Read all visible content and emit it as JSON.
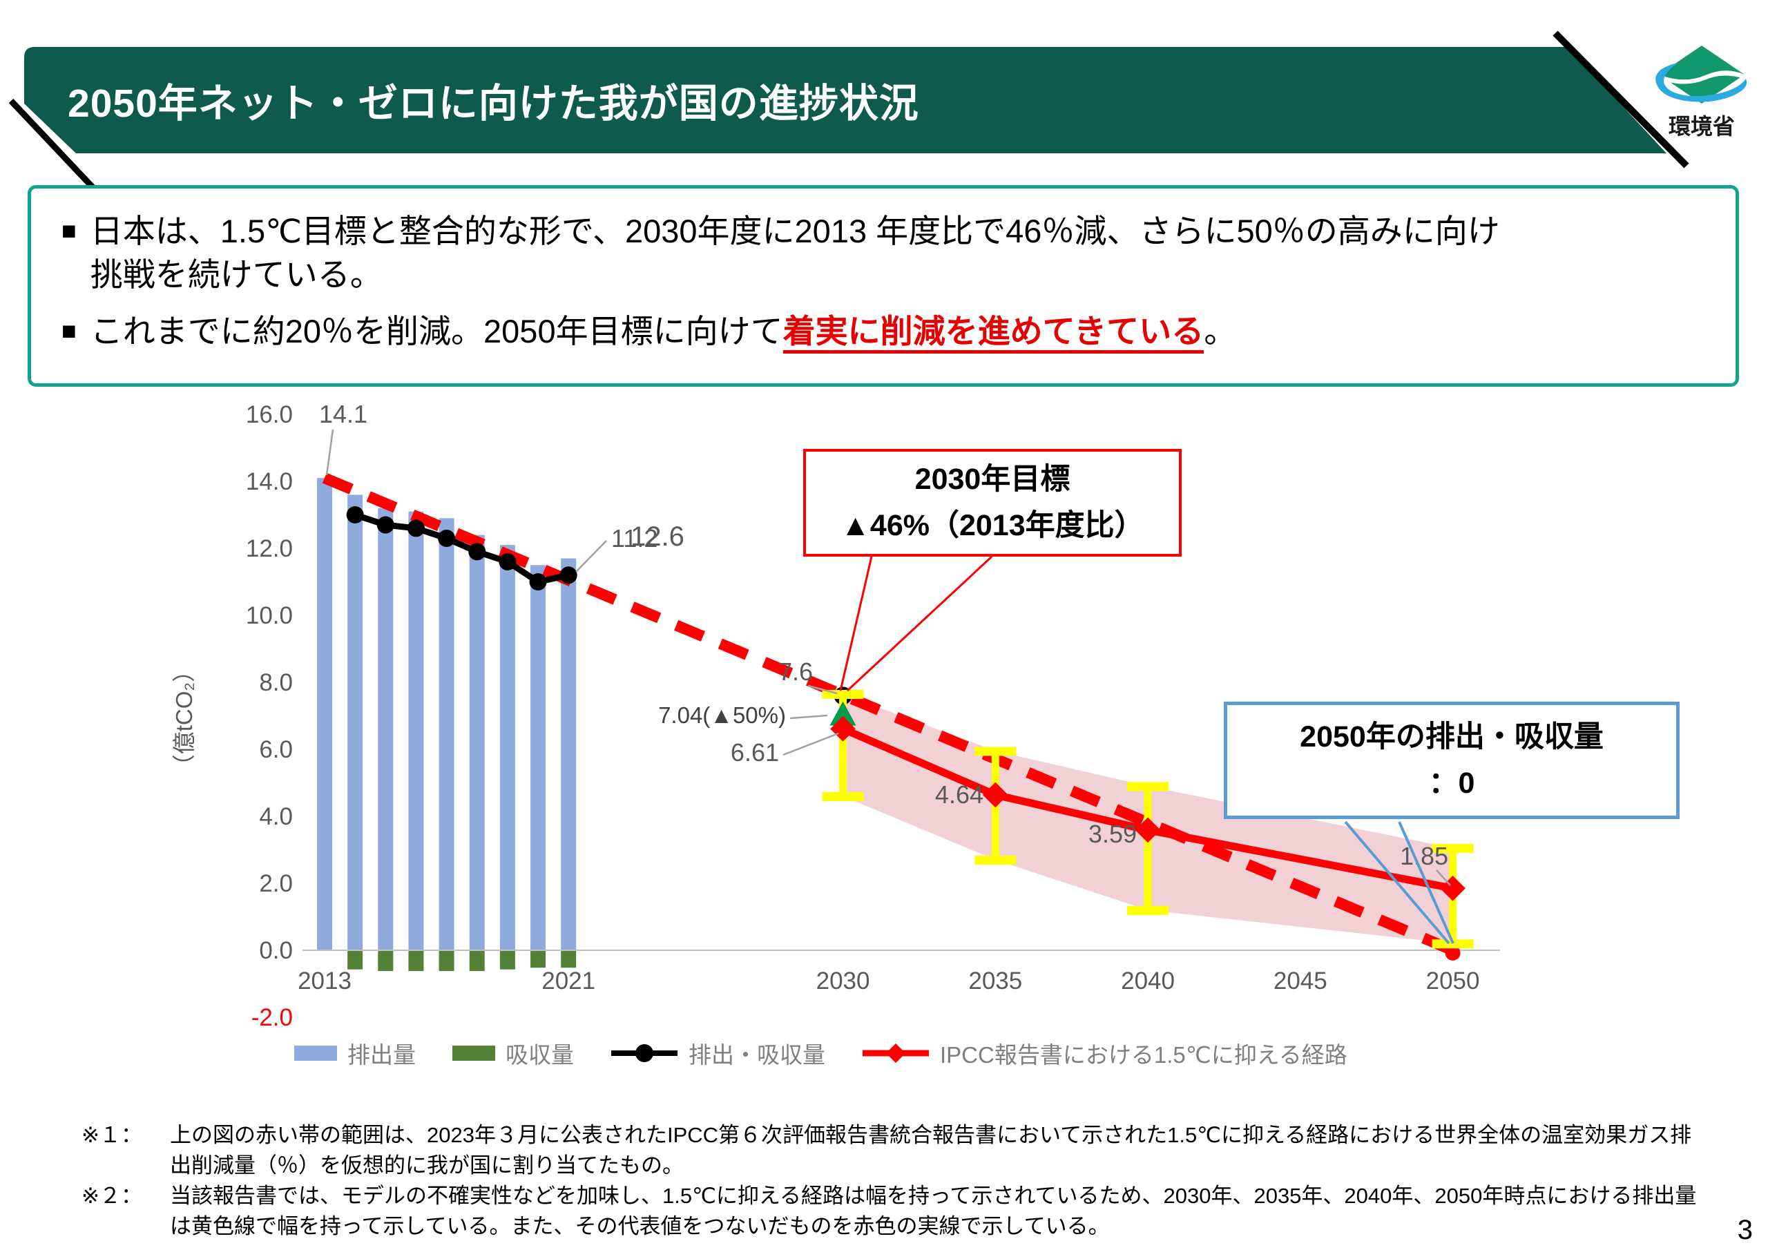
{
  "header": {
    "title": "2050年ネット・ゼロに向けた我が国の進捗状況",
    "logo_text": "環境省"
  },
  "summary_box": {
    "bullet1_lines": [
      "日本は、1.5℃目標と整合的な形で、2030年度に2013 年度比で46％減、さらに50％の高みに向け",
      "挑戦を続けている。"
    ],
    "bullet2_prefix": "これまでに約20％を削減。2050年目標に向けて",
    "bullet2_highlight": "着実に削減を進めてきている",
    "bullet2_suffix": "。"
  },
  "callouts": [
    {
      "id": "target-2030",
      "lines": [
        "2030年目標",
        "▲46%（2013年度比）"
      ],
      "border_color": "#ff0000",
      "target": {
        "year": 2030,
        "value": 7.6
      }
    },
    {
      "id": "netzero-2050",
      "lines": [
        "2050年の排出・吸収量",
        "：0"
      ],
      "border_color": "#5b9bd5",
      "target": {
        "year": 2050,
        "value": 0
      }
    }
  ],
  "chart_data": {
    "type": "bar+line combo",
    "ylabel": "（億tCO₂）",
    "ylim": [
      -2.0,
      16.0
    ],
    "grid": false,
    "y_ticks": [
      {
        "label": "16.0",
        "v": 16,
        "color": "#595959"
      },
      {
        "label": "14.0",
        "v": 14,
        "color": "#595959"
      },
      {
        "label": "12.0",
        "v": 12,
        "color": "#595959"
      },
      {
        "label": "10.0",
        "v": 10,
        "color": "#595959"
      },
      {
        "label": "8.0",
        "v": 8,
        "color": "#595959"
      },
      {
        "label": "6.0",
        "v": 6,
        "color": "#595959"
      },
      {
        "label": "4.0",
        "v": 4,
        "color": "#595959"
      },
      {
        "label": "2.0",
        "v": 2,
        "color": "#595959"
      },
      {
        "label": "0.0",
        "v": 0,
        "color": "#595959"
      },
      {
        "label": "-2.0",
        "v": -2,
        "color": "#ff0000"
      }
    ],
    "x_ticks": [
      {
        "label": "2013",
        "year": 2013
      },
      {
        "label": "2021",
        "year": 2021
      },
      {
        "label": "2030",
        "year": 2030
      },
      {
        "label": "2035",
        "year": 2035
      },
      {
        "label": "2040",
        "year": 2040
      },
      {
        "label": "2045",
        "year": 2045
      },
      {
        "label": "2050",
        "year": 2050
      }
    ],
    "series": [
      {
        "name": "排出量",
        "type": "bar",
        "color": "#8faadc",
        "x": [
          2013,
          2014,
          2015,
          2016,
          2017,
          2018,
          2019,
          2020,
          2021
        ],
        "values": [
          14.1,
          13.6,
          13.2,
          13.1,
          12.9,
          12.4,
          12.1,
          11.5,
          11.7
        ]
      },
      {
        "name": "吸収量",
        "type": "bar",
        "color": "#538135",
        "x": [
          2014,
          2015,
          2016,
          2017,
          2018,
          2019,
          2020,
          2021
        ],
        "values": [
          -0.55,
          -0.6,
          -0.6,
          -0.6,
          -0.6,
          -0.55,
          -0.5,
          -0.5
        ]
      },
      {
        "name": "排出・吸収量",
        "type": "line",
        "color": "#000000",
        "marker": "circle",
        "x": [
          2014,
          2015,
          2016,
          2017,
          2018,
          2019,
          2020,
          2021
        ],
        "values": [
          13.0,
          12.7,
          12.6,
          12.3,
          11.9,
          11.6,
          11.0,
          11.2
        ]
      },
      {
        "name": "IPCC報告書における1.5℃に抑える経路",
        "type": "line",
        "color": "#ff0000",
        "marker": "diamond",
        "x": [
          2030,
          2035,
          2040,
          2050
        ],
        "values": [
          6.61,
          4.64,
          3.59,
          1.85
        ]
      },
      {
        "name": "linear_path_2013_to_2050",
        "type": "dashed-line",
        "color": "#ff0000",
        "x": [
          2013,
          2050
        ],
        "values": [
          14.1,
          0
        ]
      }
    ],
    "range_band": {
      "color": "#f1d1d6",
      "x": [
        2030,
        2035,
        2040,
        2050
      ],
      "upper": [
        7.65,
        5.95,
        4.9,
        3.05
      ],
      "lower": [
        4.6,
        2.7,
        1.2,
        0.2
      ]
    },
    "error_bars": {
      "color": "#ffff00",
      "x": [
        2030,
        2035,
        2040,
        2050
      ],
      "upper": [
        7.65,
        5.95,
        4.9,
        3.05
      ],
      "lower": [
        4.6,
        2.7,
        1.2,
        0.2
      ]
    },
    "markers": [
      {
        "shape": "circle",
        "color": "#000000",
        "year": 2030,
        "value": 7.6
      },
      {
        "shape": "triangle-up",
        "color": "#009a49",
        "year": 2030,
        "value": 7.04
      },
      {
        "shape": "circle",
        "color": "#ff0000",
        "year": 2050,
        "value": -0.08
      }
    ],
    "point_labels": [
      {
        "text": "14.1",
        "year": 2013,
        "value": 14.1
      },
      {
        "text": "12.6",
        "year": 2016,
        "value": 12.6
      },
      {
        "text": "11.2",
        "year": 2021,
        "value": 11.2
      },
      {
        "text": "7.6",
        "year": 2030,
        "value": 7.6
      },
      {
        "text": "7.04(▲50%)",
        "year": 2030,
        "value": 7.04
      },
      {
        "text": "6.61",
        "year": 2030,
        "value": 6.61
      },
      {
        "text": "4.64",
        "year": 2035,
        "value": 4.64
      },
      {
        "text": "3.59",
        "year": 2040,
        "value": 3.59
      },
      {
        "text": "1.85",
        "year": 2050,
        "value": 1.85
      }
    ]
  },
  "legend": {
    "items": [
      {
        "label": "排出量",
        "swatch": "bar-blue"
      },
      {
        "label": "吸収量",
        "swatch": "bar-green"
      },
      {
        "label": "排出・吸収量",
        "swatch": "line-black-dot"
      },
      {
        "label": "IPCC報告書における1.5℃に抑える経路",
        "swatch": "line-red-diamond"
      }
    ]
  },
  "footnotes": [
    {
      "label": "※１：",
      "text": "上の図の赤い帯の範囲は、2023年３月に公表されたIPCC第６次評価報告書統合報告書において示された1.5℃に抑える経路における世界全体の温室効果ガス排出削減量（％）を仮想的に我が国に割り当てたもの。"
    },
    {
      "label": "※２：",
      "text": "当該報告書では、モデルの不確実性などを加味し、1.5℃に抑える経路は幅を持って示されているため、2030年、2035年、2040年、2050年時点における排出量は黄色線で幅を持って示している。また、その代表値をつないだものを赤色の実線で示している。"
    }
  ],
  "colors": {
    "header_bg": "#0e5a4b",
    "summary_border": "#10a58c",
    "bar_blue": "#8faadc",
    "bar_green": "#538135",
    "band_pink": "#f1d1d6",
    "errorbar_yellow": "#ffff00",
    "path_red": "#ff0000",
    "callout_blue": "#5b9bd5",
    "tick_gray": "#595959",
    "legend_gray": "#7f7f7f",
    "logo_green": "#13986d",
    "logo_blue": "#29abe2"
  },
  "page_number": "3"
}
